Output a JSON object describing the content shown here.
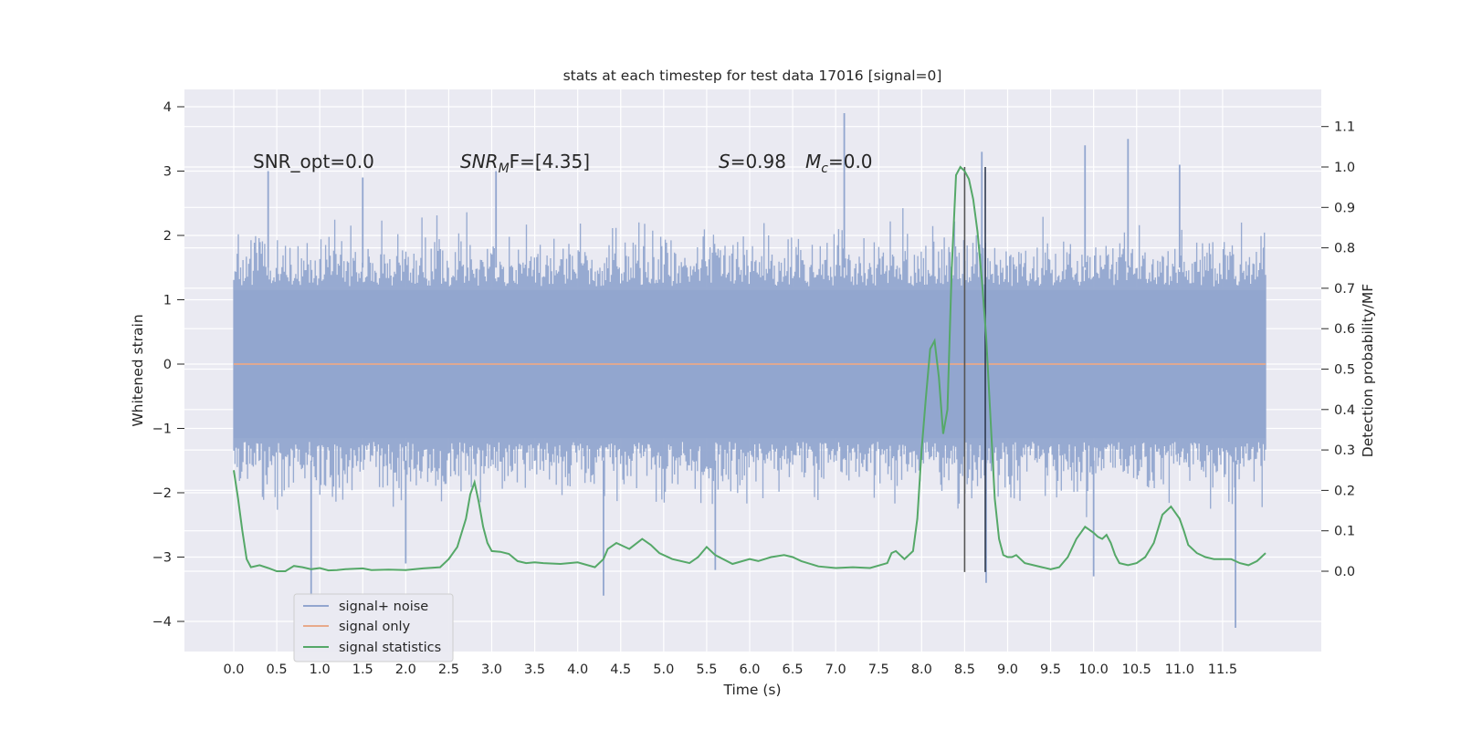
{
  "chart_data": {
    "type": "line",
    "title": "stats at each timestep for test data 17016 [signal=0]",
    "xlabel": "Time (s)",
    "ylabel_left": "Whitened strain",
    "ylabel_right": "Detection probability/MF",
    "xlim": [
      0.0,
      12.0
    ],
    "ylim_left": [
      -4.5,
      4.3
    ],
    "ylim_right": [
      -0.2,
      1.18
    ],
    "x_ticks": [
      "0.0",
      "0.5",
      "1.0",
      "1.5",
      "2.0",
      "2.5",
      "3.0",
      "3.5",
      "4.0",
      "4.5",
      "5.0",
      "5.5",
      "6.0",
      "6.5",
      "7.0",
      "7.5",
      "8.0",
      "8.5",
      "9.0",
      "9.5",
      "10.0",
      "10.5",
      "11.0",
      "11.5"
    ],
    "y_ticks_left": [
      "4",
      "3",
      "2",
      "1",
      "0",
      "−1",
      "−2",
      "−3",
      "−4"
    ],
    "y_ticks_right": [
      "1.1",
      "1.0",
      "0.9",
      "0.8",
      "0.7",
      "0.6",
      "0.5",
      "0.4",
      "0.3",
      "0.2",
      "0.1",
      "0.0"
    ],
    "annotations": {
      "snr_opt": "SNR_opt=0.0",
      "snr_mf_main": "SNR",
      "snr_mf_sub": "M",
      "snr_mf_rest": "F=[4.35]",
      "s_main": "S",
      "s_rest": "=0.98",
      "mc_main": "M",
      "mc_sub": "c",
      "mc_rest": "=0.0"
    },
    "grid": true,
    "legend_position": "lower-left",
    "vertical_lines_x": [
      8.5,
      8.74
    ],
    "series": [
      {
        "name": "signal+ noise",
        "axis": "left",
        "color": "#92a6cf",
        "description_values": {
          "x_range": [
            0.0,
            12.0
          ],
          "typical_envelope": [
            -2.2,
            2.2
          ],
          "peak_high": [
            [
              7.1,
              3.9
            ],
            [
              10.4,
              3.5
            ],
            [
              8.7,
              3.3
            ],
            [
              9.9,
              3.4
            ],
            [
              11.0,
              3.1
            ],
            [
              3.05,
              3.0
            ],
            [
              0.4,
              3.0
            ],
            [
              1.5,
              2.9
            ]
          ],
          "peak_low": [
            [
              11.65,
              -4.1
            ],
            [
              4.3,
              -3.6
            ],
            [
              0.9,
              -3.6
            ],
            [
              8.75,
              -3.4
            ],
            [
              5.6,
              -3.2
            ],
            [
              10.0,
              -3.3
            ],
            [
              2.0,
              -3.1
            ]
          ]
        }
      },
      {
        "name": "signal only",
        "axis": "left",
        "color": "#dd8452",
        "x": [
          0.0,
          12.0
        ],
        "values": [
          0.0,
          0.0
        ]
      },
      {
        "name": "signal statistics",
        "axis": "right",
        "color": "#55a868",
        "x": [
          0.0,
          0.05,
          0.1,
          0.15,
          0.2,
          0.3,
          0.4,
          0.5,
          0.6,
          0.7,
          0.8,
          0.9,
          1.0,
          1.1,
          1.2,
          1.3,
          1.5,
          1.6,
          1.8,
          2.0,
          2.2,
          2.4,
          2.5,
          2.6,
          2.7,
          2.75,
          2.8,
          2.85,
          2.9,
          2.95,
          3.0,
          3.1,
          3.2,
          3.3,
          3.4,
          3.5,
          3.6,
          3.8,
          4.0,
          4.2,
          4.3,
          4.35,
          4.45,
          4.6,
          4.75,
          4.85,
          4.95,
          5.1,
          5.3,
          5.4,
          5.5,
          5.6,
          5.8,
          6.0,
          6.1,
          6.25,
          6.4,
          6.5,
          6.6,
          6.8,
          7.0,
          7.2,
          7.4,
          7.6,
          7.65,
          7.7,
          7.8,
          7.9,
          7.95,
          8.0,
          8.05,
          8.1,
          8.15,
          8.2,
          8.25,
          8.3,
          8.35,
          8.4,
          8.45,
          8.5,
          8.55,
          8.6,
          8.65,
          8.7,
          8.75,
          8.8,
          8.85,
          8.9,
          8.95,
          9.0,
          9.05,
          9.1,
          9.15,
          9.2,
          9.3,
          9.4,
          9.5,
          9.6,
          9.7,
          9.8,
          9.9,
          10.0,
          10.05,
          10.1,
          10.15,
          10.2,
          10.25,
          10.3,
          10.4,
          10.5,
          10.6,
          10.7,
          10.8,
          10.9,
          11.0,
          11.05,
          11.1,
          11.2,
          11.3,
          11.4,
          11.6,
          11.7,
          11.8,
          11.9,
          12.0
        ],
        "values": [
          0.25,
          0.18,
          0.1,
          0.03,
          0.01,
          0.015,
          0.008,
          0.0,
          0.0,
          0.013,
          0.01,
          0.005,
          0.008,
          0.002,
          0.003,
          0.005,
          0.007,
          0.003,
          0.004,
          0.003,
          0.007,
          0.01,
          0.03,
          0.06,
          0.13,
          0.19,
          0.22,
          0.17,
          0.11,
          0.07,
          0.05,
          0.048,
          0.043,
          0.025,
          0.02,
          0.022,
          0.02,
          0.018,
          0.022,
          0.01,
          0.03,
          0.055,
          0.07,
          0.055,
          0.08,
          0.065,
          0.045,
          0.03,
          0.02,
          0.035,
          0.06,
          0.04,
          0.018,
          0.03,
          0.025,
          0.035,
          0.04,
          0.035,
          0.025,
          0.012,
          0.008,
          0.01,
          0.008,
          0.02,
          0.045,
          0.05,
          0.03,
          0.05,
          0.13,
          0.3,
          0.43,
          0.55,
          0.57,
          0.48,
          0.34,
          0.4,
          0.75,
          0.98,
          1.0,
          0.99,
          0.97,
          0.92,
          0.84,
          0.72,
          0.58,
          0.38,
          0.18,
          0.08,
          0.04,
          0.035,
          0.035,
          0.04,
          0.03,
          0.02,
          0.015,
          0.01,
          0.005,
          0.01,
          0.035,
          0.08,
          0.11,
          0.095,
          0.085,
          0.08,
          0.09,
          0.07,
          0.04,
          0.02,
          0.015,
          0.02,
          0.035,
          0.07,
          0.14,
          0.16,
          0.13,
          0.1,
          0.065,
          0.045,
          0.035,
          0.03,
          0.03,
          0.02,
          0.015,
          0.025,
          0.045
        ]
      }
    ]
  }
}
